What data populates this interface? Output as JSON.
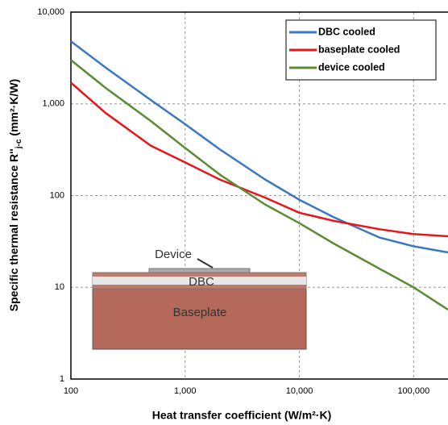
{
  "chart_data": {
    "type": "line",
    "x_label": "Heat transfer coefficient (W/m²·K)",
    "y_label": [
      "Specific thermal resistance R''",
      "j-c",
      "(mm²·K/W)"
    ],
    "x": [
      100,
      200,
      500,
      1000,
      2000,
      5000,
      10000,
      20000,
      50000,
      100000,
      200000
    ],
    "series": [
      {
        "name": "DBC cooled",
        "color": "#3b78c2",
        "values": [
          4800,
          2500,
          1100,
          600,
          320,
          150,
          90,
          58,
          35,
          28,
          24
        ]
      },
      {
        "name": "baseplate cooled",
        "color": "#e5161c",
        "values": [
          1700,
          800,
          350,
          230,
          150,
          95,
          65,
          53,
          43,
          38,
          36
        ]
      },
      {
        "name": "device cooled",
        "color": "#5b8c33",
        "values": [
          3000,
          1500,
          650,
          330,
          170,
          80,
          50,
          30,
          16,
          10,
          5.7
        ]
      }
    ],
    "xlim": [
      100,
      200000
    ],
    "ylim": [
      1,
      10000
    ],
    "xticks": [
      100,
      {
        "value": 1000,
        "label": "1,000"
      },
      {
        "value": 10000,
        "label": "10,000"
      },
      {
        "value": 100000,
        "label": "100,000"
      }
    ],
    "yticks": [
      1,
      10,
      100,
      {
        "value": 1000,
        "label": "1,000"
      },
      {
        "value": 10000,
        "label": "10,000"
      }
    ],
    "log_x": true,
    "log_y": true,
    "grid": true,
    "legend": "upper right",
    "annotations": [
      "Device",
      "DBC",
      "Baseplate"
    ]
  }
}
